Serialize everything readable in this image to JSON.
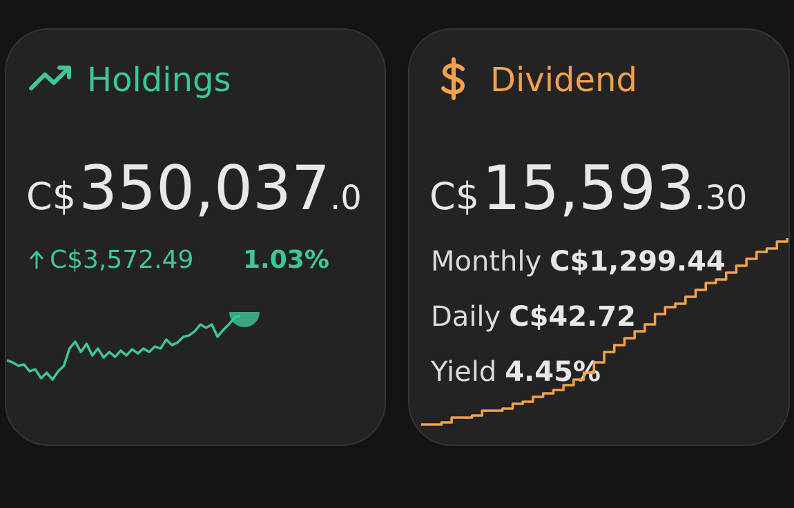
{
  "holdings": {
    "title": "Holdings",
    "currency": "C$",
    "integer": "350,037",
    "decimal": ".0",
    "change": "C$3,572.49",
    "percent": "1.03%",
    "sparkline": {
      "type": "line",
      "color": "#3dc79b",
      "ylim": [
        0,
        110
      ],
      "values": [
        38,
        35,
        30,
        32,
        22,
        25,
        12,
        20,
        10,
        22,
        30,
        55,
        65,
        50,
        62,
        45,
        55,
        42,
        50,
        43,
        52,
        45,
        54,
        48,
        55,
        50,
        58,
        55,
        68,
        60,
        64,
        72,
        74,
        80,
        90,
        85,
        90,
        72,
        82,
        90,
        100,
        102
      ]
    }
  },
  "dividend": {
    "title": "Dividend",
    "currency": "C$",
    "integer": "15,593",
    "decimal": ".30",
    "rows": [
      {
        "label": "Monthly",
        "value": "C$1,299.44"
      },
      {
        "label": "Daily",
        "value": "C$42.72"
      },
      {
        "label": "Yield",
        "value": "4.45%"
      }
    ],
    "sparkline": {
      "type": "step",
      "color": "#f4a24a",
      "ylim": [
        0,
        280
      ],
      "values": [
        5,
        5,
        8,
        15,
        15,
        18,
        25,
        25,
        28,
        35,
        38,
        45,
        50,
        55,
        62,
        70,
        80,
        95,
        110,
        120,
        130,
        140,
        150,
        165,
        175,
        180,
        190,
        200,
        210,
        215,
        225,
        235,
        245,
        255,
        260,
        270,
        275
      ]
    }
  }
}
